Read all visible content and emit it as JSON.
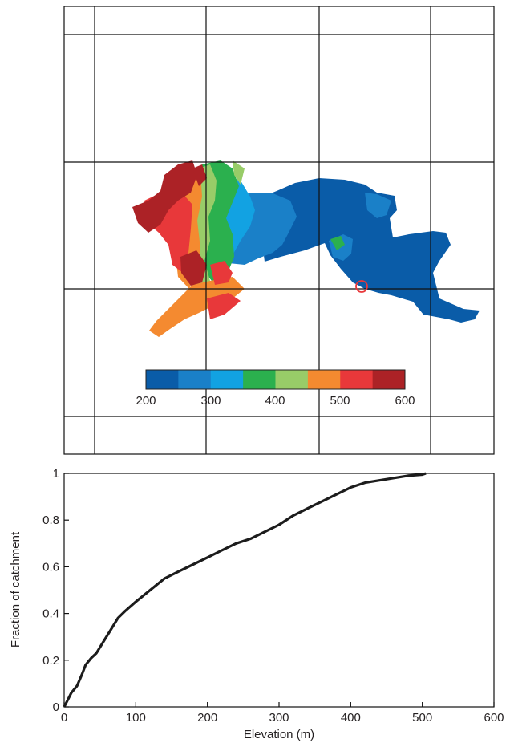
{
  "colors": {
    "elevation_classes": [
      "#0a5ca8",
      "#1a80c8",
      "#12a2e2",
      "#2bb04e",
      "#98cc68",
      "#f48a30",
      "#e8383a",
      "#ac2226"
    ],
    "outlet_marker": "#e8383a",
    "grid": "#111111",
    "curve": "#1c1c1c"
  },
  "map": {
    "colorbar": {
      "tick_labels": [
        "200",
        "300",
        "400",
        "500",
        "600"
      ]
    }
  },
  "chart_data": {
    "type": "line",
    "title": "",
    "xlabel": "Elevation  (m)",
    "ylabel": "Fraction of catchment",
    "xlim": [
      0,
      600
    ],
    "ylim": [
      0,
      1
    ],
    "xticks": [
      "0",
      "100",
      "200",
      "300",
      "400",
      "500",
      "600"
    ],
    "yticks": [
      "0",
      "0.2",
      "0.4",
      "0.6",
      "0.8",
      "1"
    ],
    "grid": false,
    "series": [
      {
        "x": [
          0,
          5,
          10,
          18,
          25,
          30,
          38,
          45,
          55,
          65,
          75,
          85,
          100,
          120,
          140,
          160,
          180,
          200,
          220,
          240,
          260,
          280,
          300,
          320,
          340,
          360,
          380,
          400,
          420,
          440,
          460,
          480,
          500,
          505
        ],
        "y": [
          0,
          0.03,
          0.06,
          0.09,
          0.14,
          0.18,
          0.21,
          0.23,
          0.28,
          0.33,
          0.38,
          0.41,
          0.45,
          0.5,
          0.55,
          0.58,
          0.61,
          0.64,
          0.67,
          0.7,
          0.72,
          0.75,
          0.78,
          0.82,
          0.85,
          0.88,
          0.91,
          0.94,
          0.96,
          0.97,
          0.98,
          0.99,
          0.995,
          1.0
        ]
      }
    ]
  }
}
